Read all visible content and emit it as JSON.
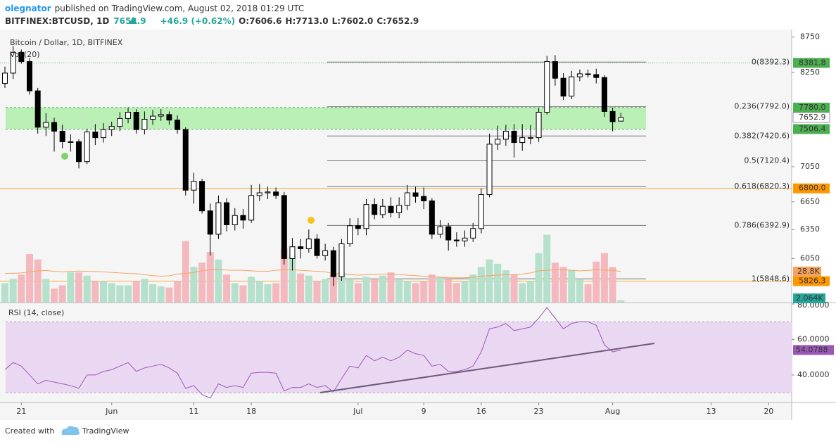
{
  "header": {
    "author": "olegnator",
    "published": "published on TradingView.com, August 02, 2018 01:29 UTC",
    "symbol": "BITFINEX:BTCUSD, 1D",
    "last": "7652.9",
    "change": "+46.9 (+0.62%)",
    "open": "O:7606.6",
    "high": "H:7713.0",
    "low": "L:7602.0",
    "close": "C:7652.9"
  },
  "footer": {
    "created": "Created with",
    "brand": "TradingView"
  },
  "chart_data": {
    "type": "candlestick",
    "title": "Bitcoin / Dollar, 1D, BITFINEX",
    "log_scale": true,
    "up_color": "#ffffff",
    "down_color": "#000000",
    "x": [
      0,
      1,
      2,
      3,
      4,
      5,
      6,
      7,
      8,
      9,
      10,
      11,
      12,
      13,
      14,
      15,
      16,
      17,
      18,
      19,
      20,
      21,
      22,
      23,
      24,
      25,
      26,
      27,
      28,
      29,
      30,
      31,
      32,
      33,
      34,
      35,
      36,
      37,
      38,
      39,
      40,
      41,
      42,
      43,
      44,
      45,
      46,
      47,
      48,
      49,
      50,
      51,
      52,
      53,
      54,
      55,
      56,
      57,
      58,
      59,
      60,
      61,
      62,
      63,
      64,
      65,
      66,
      67,
      68,
      69,
      70,
      71,
      72,
      73,
      74,
      75
    ],
    "open": [
      8100,
      8240,
      8530,
      8400,
      8000,
      7530,
      7590,
      7480,
      7350,
      7350,
      7110,
      7470,
      7400,
      7500,
      7540,
      7640,
      7720,
      7500,
      7630,
      7670,
      7690,
      7620,
      7500,
      6780,
      6880,
      6550,
      6300,
      6640,
      6400,
      6500,
      6450,
      6720,
      6750,
      6760,
      6720,
      6050,
      6170,
      6150,
      6250,
      6080,
      6130,
      5870,
      6200,
      6390,
      6360,
      6620,
      6510,
      6600,
      6530,
      6610,
      6750,
      6710,
      6660,
      6300,
      6380,
      6240,
      6230,
      6260,
      6360,
      6730,
      7320,
      7380,
      7480,
      7340,
      7400,
      7400,
      7720,
      8400,
      8170,
      7930,
      8190,
      8230,
      8220,
      8180,
      7730,
      7606.6
    ],
    "high": [
      8330,
      8620,
      8570,
      8450,
      8040,
      7710,
      7650,
      7560,
      7440,
      7380,
      7510,
      7570,
      7580,
      7600,
      7720,
      7780,
      7760,
      7730,
      7750,
      7760,
      7730,
      7680,
      7530,
      6980,
      6910,
      6630,
      6720,
      6690,
      6580,
      6570,
      6840,
      6850,
      6820,
      6810,
      6760,
      6260,
      6250,
      6350,
      6300,
      6200,
      6170,
      6250,
      6470,
      6470,
      6680,
      6690,
      6680,
      6700,
      6700,
      6840,
      6820,
      6810,
      6690,
      6450,
      6420,
      6320,
      6340,
      6420,
      6800,
      7450,
      7550,
      7560,
      7570,
      7570,
      7560,
      7770,
      8480,
      8490,
      8240,
      8270,
      8290,
      8290,
      8300,
      8210,
      7780,
      7713.0
    ],
    "low": [
      8040,
      8160,
      8370,
      7950,
      7450,
      7420,
      7230,
      7270,
      7230,
      7030,
      7080,
      7310,
      7340,
      7420,
      7480,
      7580,
      7450,
      7440,
      7560,
      7610,
      7560,
      7450,
      6720,
      6630,
      6520,
      6080,
      6250,
      6330,
      6340,
      6360,
      6420,
      6660,
      6680,
      6680,
      5990,
      5930,
      6050,
      6110,
      6050,
      6030,
      5780,
      5830,
      6170,
      6290,
      6290,
      6460,
      6470,
      6480,
      6470,
      6560,
      6640,
      6570,
      6250,
      6260,
      6130,
      6170,
      6170,
      6220,
      6310,
      6700,
      7250,
      7300,
      7160,
      7240,
      7320,
      7350,
      7690,
      8070,
      7880,
      7890,
      8130,
      8180,
      8100,
      7660,
      7480,
      7602.0
    ],
    "close": [
      8240,
      8530,
      8400,
      8000,
      7530,
      7590,
      7480,
      7350,
      7350,
      7110,
      7470,
      7400,
      7500,
      7540,
      7640,
      7720,
      7500,
      7630,
      7670,
      7690,
      7620,
      7500,
      6780,
      6880,
      6550,
      6300,
      6640,
      6400,
      6500,
      6450,
      6720,
      6750,
      6760,
      6720,
      6050,
      6170,
      6150,
      6250,
      6080,
      6130,
      5870,
      6200,
      6390,
      6360,
      6620,
      6510,
      6600,
      6530,
      6610,
      6750,
      6710,
      6660,
      6300,
      6380,
      6240,
      6230,
      6260,
      6360,
      6730,
      7320,
      7380,
      7480,
      7340,
      7400,
      7400,
      7720,
      8400,
      8170,
      7930,
      8190,
      8230,
      8220,
      8180,
      7730,
      7600,
      7652.9
    ],
    "xlim": [
      -0.6,
      95.8
    ],
    "xticks": [
      {
        "value": 2,
        "label": "21"
      },
      {
        "value": 13,
        "label": "Jun"
      },
      {
        "value": 23,
        "label": "11"
      },
      {
        "value": 30,
        "label": "18"
      },
      {
        "value": 43,
        "label": "Jul"
      },
      {
        "value": 51,
        "label": "9"
      },
      {
        "value": 58,
        "label": "16"
      },
      {
        "value": 65,
        "label": "23"
      },
      {
        "value": 74,
        "label": "Aug"
      },
      {
        "value": 86,
        "label": "13"
      },
      {
        "value": 93,
        "label": "20"
      }
    ],
    "ylim": [
      5622,
      8850
    ],
    "yticks": [
      8750,
      8250,
      7050,
      6650,
      6350,
      6050
    ],
    "zone": [
      {
        "value": 7780,
        "label": "7780.0"
      },
      {
        "value": 7506.4
      }
    ],
    "zone_color": "#a5eea0",
    "lines": [
      {
        "value": 8381.8,
        "color": "#4caf50"
      },
      {
        "value": 6800,
        "label": "6800.0",
        "color": "#ff9800"
      },
      {
        "value": 5826.3,
        "color": "#ff9800"
      }
    ],
    "fib": [
      {
        "value": 8392.3,
        "label": "0(8392.3)"
      },
      {
        "value": 7792.0,
        "label": "0.236(7792.0)"
      },
      {
        "value": 7420.6,
        "label": "0.382(7420.6)"
      },
      {
        "value": 7120.4,
        "label": "0.5(7120.4)"
      },
      {
        "value": 6820.3,
        "label": "0.618(6820.3)"
      },
      {
        "value": 6392.9,
        "label": "0.786(6392.9)"
      },
      {
        "value": 5848.6,
        "label": "1(5848.6)"
      }
    ],
    "volume_name": "Vol (20)",
    "volume": [
      18000,
      22000,
      26000,
      45000,
      40000,
      22000,
      13000,
      16000,
      28000,
      28000,
      25000,
      20000,
      20000,
      18000,
      16000,
      16000,
      20000,
      22000,
      17000,
      15000,
      14000,
      20000,
      57000,
      33000,
      37000,
      47000,
      40000,
      26000,
      18000,
      16000,
      24000,
      20000,
      17000,
      18000,
      50000,
      44000,
      27000,
      25000,
      20000,
      22000,
      26000,
      28000,
      22000,
      18000,
      24000,
      22000,
      25000,
      28000,
      22000,
      20000,
      18000,
      20000,
      26000,
      24000,
      22000,
      18000,
      20000,
      26000,
      33000,
      40000,
      36000,
      30000,
      26000,
      18000,
      20000,
      46000,
      63000,
      37000,
      33000,
      30000,
      22000,
      17000,
      38000,
      46000,
      33000,
      2064
    ],
    "volume_last_label": "2.064K",
    "vol_ma": [
      27000,
      27200,
      27500,
      28500,
      29500,
      29800,
      29000,
      28600,
      28900,
      29200,
      29000,
      28800,
      28500,
      28000,
      27500,
      27000,
      26800,
      26000,
      25000,
      24500,
      24800,
      26500,
      27000,
      28000,
      29500,
      30500,
      30500,
      30200,
      30000,
      30000,
      29500,
      29000,
      29000,
      30000,
      30500,
      30500,
      30000,
      29500,
      29000,
      28500,
      27000,
      26500,
      26000,
      25500,
      25800,
      26000,
      26500,
      26500,
      26000,
      25500,
      25000,
      24500,
      24000,
      23500,
      23000,
      23000,
      23000,
      23500,
      24500,
      25000,
      25500,
      25800,
      26000,
      26500,
      27500,
      29500,
      30000,
      30500,
      30500,
      30000,
      29500,
      29800,
      30500,
      30200,
      30000,
      28800
    ],
    "vol_ma_label": "28.8K",
    "vlim": [
      0,
      98000
    ],
    "up_volume_color": "#b5e0cb",
    "down_volume_color": "#f4b9be",
    "vol_ma_color": "#f7a35c",
    "rsi_name": "RSI (14, close)",
    "rsi_color": "#9b59b6",
    "rsi_band": [
      30,
      70
    ],
    "rsi_band_color": "#ead8f3",
    "rsi": [
      43,
      47,
      45,
      40,
      35,
      37,
      36,
      35,
      34,
      32.5,
      40,
      40,
      42,
      43,
      45,
      47,
      42,
      44,
      45,
      46,
      44,
      41,
      32.5,
      34,
      29,
      27,
      35,
      33,
      34,
      33,
      41,
      41.5,
      41.5,
      41,
      31,
      33,
      33,
      35,
      33,
      34,
      30.5,
      38,
      45,
      44,
      51,
      48,
      50,
      48,
      50,
      54,
      52,
      51,
      45,
      46,
      42,
      42,
      43,
      45,
      53,
      66,
      67,
      69,
      65,
      66,
      67,
      72,
      78,
      72,
      66,
      69,
      70,
      70,
      68,
      57,
      53,
      54.0788
    ],
    "rlim": [
      25.3,
      80.8
    ],
    "rticks": [
      {
        "value": 80,
        "label": "80.0000"
      },
      {
        "value": 60,
        "label": "60.0000"
      },
      {
        "value": 40,
        "label": "40.0000"
      }
    ]
  }
}
